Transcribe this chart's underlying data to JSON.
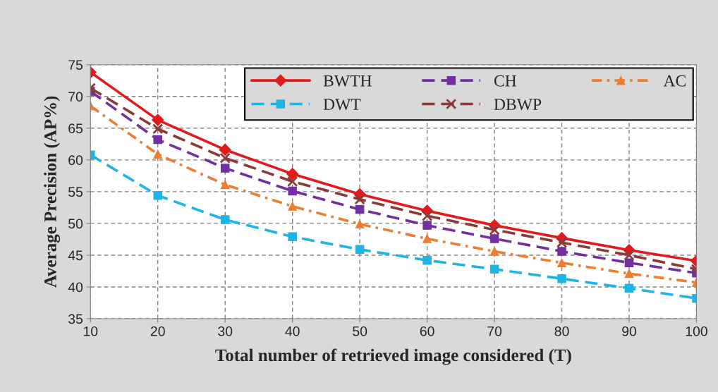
{
  "chart_data": {
    "type": "line",
    "xlabel": "Total number of retrieved image considered (T)",
    "ylabel": "Average Precision (AP%)",
    "x": [
      10,
      20,
      30,
      40,
      50,
      60,
      70,
      80,
      90,
      100
    ],
    "series": [
      {
        "name": "BWTH",
        "color": "#e31a1c",
        "marker": "diamond",
        "line_style": "solid",
        "values": [
          73.8,
          66.3,
          61.6,
          57.8,
          54.6,
          52.0,
          49.7,
          47.7,
          45.8,
          44.1
        ]
      },
      {
        "name": "CH",
        "color": "#7030a0",
        "marker": "square",
        "line_style": "dashed",
        "values": [
          70.8,
          63.2,
          58.7,
          55.1,
          52.2,
          49.7,
          47.6,
          45.6,
          43.8,
          42.2
        ]
      },
      {
        "name": "AC",
        "color": "#ed7d31",
        "marker": "triangle",
        "line_style": "dashdot",
        "values": [
          68.5,
          60.9,
          56.1,
          52.7,
          49.9,
          47.6,
          45.6,
          43.8,
          42.1,
          40.7
        ]
      },
      {
        "name": "DWT",
        "color": "#1fb4e6",
        "marker": "square",
        "line_style": "dashed",
        "values": [
          60.8,
          54.4,
          50.6,
          47.9,
          45.9,
          44.2,
          42.8,
          41.3,
          39.8,
          38.2
        ]
      },
      {
        "name": "DBWP",
        "color": "#8b3a3a",
        "marker": "cross",
        "line_style": "dashed",
        "values": [
          71.3,
          64.9,
          60.3,
          56.6,
          53.8,
          51.2,
          49.0,
          47.0,
          45.0,
          42.8
        ]
      }
    ],
    "xlim": [
      10,
      100
    ],
    "xticks": [
      10,
      20,
      30,
      40,
      50,
      60,
      70,
      80,
      90,
      100
    ],
    "ylim": [
      35,
      75
    ],
    "yticks": [
      35,
      40,
      45,
      50,
      55,
      60,
      65,
      70,
      75
    ],
    "grid": true,
    "legend": "top right"
  }
}
